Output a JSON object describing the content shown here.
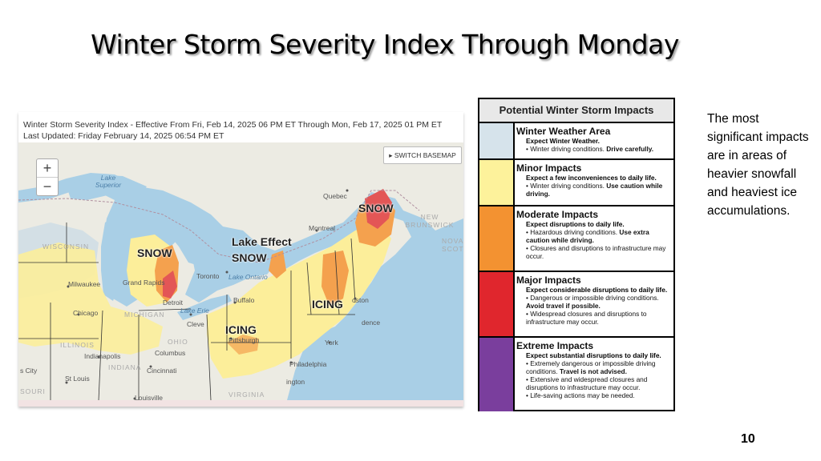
{
  "slide": {
    "title": "Winter Storm Severity Index Through Monday",
    "side_note": "The most significant impacts are in areas of heavier snowfall and heaviest ice accumulations.",
    "page_number": "10"
  },
  "map": {
    "header_line1": "Winter Storm Severity Index - Effective From Fri, Feb 14, 2025 06 PM ET Through Mon, Feb 17, 2025 01 PM ET",
    "header_line2": "Last Updated: Friday February 14, 2025 06:54 PM ET",
    "zoom_in": "+",
    "zoom_out": "−",
    "basemap_button": "▸ SWITCH BASEMAP",
    "labels": {
      "lake_superior": "Lake Superior",
      "quebec": "Quebec",
      "new_brunswick": "NEW BRUNSWICK",
      "nova_scotia": "NOVA SCOTI",
      "montreal": "Montreal",
      "wisconsin": "WISCONSIN",
      "milwaukee": "Milwaukee",
      "grand_rapids": "Grand Rapids",
      "detroit": "Detroit",
      "toronto": "Toronto",
      "lake_ontario": "Lake Ontario",
      "buffalo": "Buffalo",
      "lake_erie": "Lake Erie",
      "chicago": "Chicago",
      "michigan": "MICHIGAN",
      "cleveland": "Cleve",
      "pittsburgh": "Pittsburgh",
      "boston": "oston",
      "providence": "dence",
      "new_york": "York",
      "illinois": "ILLINOIS",
      "indianapolis": "Indianapolis",
      "indiana": "INDIANA",
      "columbus": "Columbus",
      "ohio": "OHIO",
      "cincinnati": "Cincinnati",
      "philadelphia": "Philadelphia",
      "washington": "ington",
      "st_louis": "St Louis",
      "louisville": "Louisville",
      "city": "s City",
      "missouri": "SOURI",
      "virginia": "VIRGINIA"
    },
    "overlays": {
      "snow_maine": "SNOW",
      "snow_michigan": "SNOW",
      "lake_effect_line1": "Lake Effect",
      "lake_effect_line2": "SNOW",
      "icing_new_england": "ICING",
      "icing_pennsylvania": "ICING"
    },
    "colors": {
      "water": "#a9cfe6",
      "land": "#ecebe3",
      "winter_weather": "#cfdde5",
      "minor": "#fcee9a",
      "moderate": "#f4a14e",
      "major": "#e35656"
    }
  },
  "legend": {
    "title": "Potential Winter Storm Impacts",
    "items": [
      {
        "name": "Winter Weather Area",
        "color": "#d6e3eb",
        "lead": "Expect Winter Weather.",
        "bullets": [
          {
            "text": "• Winter driving conditions. ",
            "bold": "Drive carefully."
          }
        ]
      },
      {
        "name": "Minor Impacts",
        "color": "#fdf29b",
        "lead": "Expect a few inconveniences to daily life.",
        "bullets": [
          {
            "text": "• Winter driving conditions. ",
            "bold": "Use caution while driving."
          }
        ]
      },
      {
        "name": "Moderate Impacts",
        "color": "#f39231",
        "lead": "Expect disruptions to daily life.",
        "bullets": [
          {
            "text": "• Hazardous driving conditions. ",
            "bold": "Use extra caution while driving."
          },
          {
            "text": "• Closures and disruptions to infrastructure may occur.",
            "bold": ""
          }
        ]
      },
      {
        "name": "Major Impacts",
        "color": "#e0262d",
        "lead": "Expect considerable disruptions to daily life.",
        "bullets": [
          {
            "text": "• Dangerous or impossible driving conditions. ",
            "bold": "Avoid travel if possible."
          },
          {
            "text": "• Widespread closures and disruptions to infrastructure may occur.",
            "bold": ""
          }
        ]
      },
      {
        "name": "Extreme Impacts",
        "color": "#7a3e9d",
        "lead": "Expect substantial disruptions to daily life.",
        "bullets": [
          {
            "text": "• Extremely dangerous or impossible driving conditions. ",
            "bold": "Travel is not advised."
          },
          {
            "text": "• Extensive and widespread closures and disruptions to infrastructure may occur.",
            "bold": ""
          },
          {
            "text": "• Life-saving actions may be needed.",
            "bold": ""
          }
        ]
      }
    ]
  }
}
